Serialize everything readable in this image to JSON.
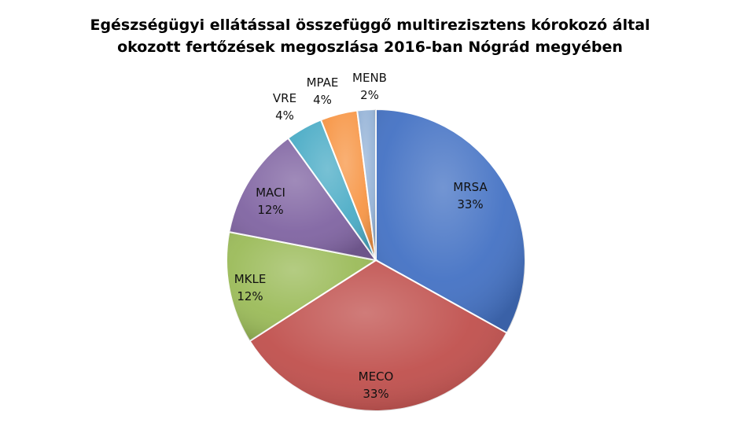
{
  "chart_data": {
    "type": "pie",
    "title_lines": [
      "Egészségügyi ellátással összefüggő multirezisztens kórokozó által",
      "okozott fertőzések megoszlása 2016-ban Nógrád megyében"
    ],
    "slices": [
      {
        "label": "MRSA",
        "value": 33,
        "pct": "33%",
        "color": "#4472C4"
      },
      {
        "label": "MECO",
        "value": 33,
        "pct": "33%",
        "color": "#C0504D"
      },
      {
        "label": "MKLE",
        "value": 12,
        "pct": "12%",
        "color": "#9BBB59"
      },
      {
        "label": "MACI",
        "value": 12,
        "pct": "12%",
        "color": "#8064A2"
      },
      {
        "label": "VRE",
        "value": 4,
        "pct": "4%",
        "color": "#4BACC6"
      },
      {
        "label": "MPAE",
        "value": 4,
        "pct": "4%",
        "color": "#F79646"
      },
      {
        "label": "MENB",
        "value": 2,
        "pct": "2%",
        "color": "#95B3D7"
      }
    ]
  }
}
